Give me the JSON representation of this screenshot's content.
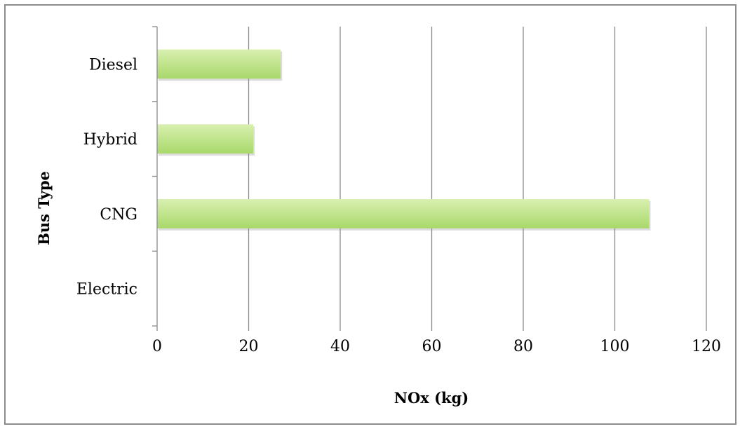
{
  "chart_data": {
    "type": "bar",
    "orientation": "horizontal",
    "categories": [
      "Diesel",
      "Hybrid",
      "CNG",
      "Electric"
    ],
    "values": [
      27,
      21,
      107.5,
      0
    ],
    "xlabel": "NOx (kg)",
    "ylabel": "Bus Type",
    "xlim": [
      0,
      120
    ],
    "xticks": [
      "0",
      "20",
      "40",
      "60",
      "80",
      "100",
      "120"
    ],
    "grid": "vertical",
    "legend": "none",
    "bar_color": "#a8d86a",
    "bar_color_light": "#d9f0b0",
    "gridline_color": "#8c8c8c"
  }
}
